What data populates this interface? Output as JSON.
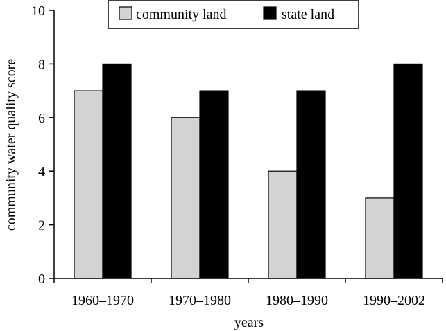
{
  "chart_data": {
    "type": "bar",
    "categories": [
      "1960–1970",
      "1970–1980",
      "1980–1990",
      "1990–2002"
    ],
    "series": [
      {
        "name": "community land",
        "values": [
          7,
          6,
          4,
          3
        ],
        "color": "#d3d3d3"
      },
      {
        "name": "state land",
        "values": [
          8,
          7,
          7,
          8
        ],
        "color": "#000000"
      }
    ],
    "title": "",
    "xlabel": "years",
    "ylabel": "community water quality score",
    "ylim": [
      0,
      10
    ],
    "yticks": [
      0,
      2,
      4,
      6,
      8,
      10
    ],
    "legend_position": "top",
    "grid": false
  }
}
